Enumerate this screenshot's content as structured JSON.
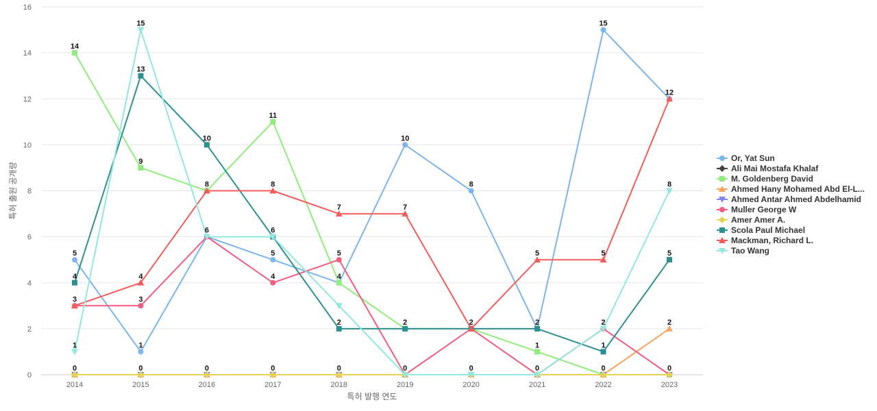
{
  "chart_data": {
    "type": "line",
    "title": "",
    "xlabel": "특허 발행 연도",
    "ylabel": "특허 출원 공개량",
    "x": [
      "2014",
      "2015",
      "2016",
      "2017",
      "2018",
      "2019",
      "2020",
      "2021",
      "2022",
      "2023"
    ],
    "ylim": [
      0,
      16
    ],
    "yticks": [
      0,
      2,
      4,
      6,
      8,
      10,
      12,
      14,
      16
    ],
    "grid": "horizontal",
    "legend_position": "right",
    "series": [
      {
        "name": "Or, Yat Sun",
        "color": "#7cb5ec",
        "marker": "circle",
        "values": [
          5,
          1,
          6,
          5,
          4,
          10,
          8,
          2,
          15,
          12
        ]
      },
      {
        "name": "Ali Mai Mostafa Khalaf",
        "color": "#434348",
        "marker": "diamond",
        "values": [
          0,
          0,
          0,
          0,
          0,
          0,
          0,
          0,
          0,
          0
        ]
      },
      {
        "name": "M. Goldenberg David",
        "color": "#90ed7d",
        "marker": "square",
        "values": [
          14,
          9,
          8,
          11,
          4,
          2,
          2,
          1,
          0,
          0
        ]
      },
      {
        "name": "Ahmed Hany Mohamed Abd El-L...",
        "color": "#f7a35c",
        "marker": "triangle",
        "values": [
          0,
          0,
          0,
          0,
          0,
          0,
          0,
          0,
          0,
          2
        ]
      },
      {
        "name": "Ahmed Antar Ahmed Abdelhamid",
        "color": "#8085e9",
        "marker": "triangle-down",
        "values": [
          0,
          0,
          0,
          0,
          0,
          0,
          0,
          0,
          0,
          0
        ]
      },
      {
        "name": "Muller George W",
        "color": "#f15c80",
        "marker": "circle",
        "values": [
          3,
          3,
          6,
          4,
          5,
          0,
          2,
          0,
          2,
          0
        ]
      },
      {
        "name": "Amer Amer A.",
        "color": "#e4d354",
        "marker": "diamond",
        "values": [
          0,
          0,
          0,
          0,
          0,
          0,
          0,
          0,
          0,
          0
        ]
      },
      {
        "name": "Scola Paul Michael",
        "color": "#2b908f",
        "marker": "square",
        "values": [
          4,
          13,
          10,
          6,
          2,
          2,
          2,
          2,
          1,
          5
        ]
      },
      {
        "name": "Mackman, Richard L.",
        "color": "#f45b5b",
        "marker": "triangle",
        "values": [
          3,
          4,
          8,
          8,
          7,
          7,
          2,
          5,
          5,
          12
        ]
      },
      {
        "name": "Tao Wang",
        "color": "#91e8e1",
        "marker": "triangle-down",
        "values": [
          1,
          15,
          6,
          6,
          3,
          0,
          0,
          0,
          2,
          8
        ]
      }
    ],
    "data_labels": [
      {
        "x": "2014",
        "y": 14,
        "text": "14"
      },
      {
        "x": "2014",
        "y": 5,
        "text": "5"
      },
      {
        "x": "2014",
        "y": 4,
        "text": "4"
      },
      {
        "x": "2014",
        "y": 3,
        "text": "3"
      },
      {
        "x": "2014",
        "y": 1,
        "text": "1"
      },
      {
        "x": "2014",
        "y": 0,
        "text": "0"
      },
      {
        "x": "2015",
        "y": 15,
        "text": "15"
      },
      {
        "x": "2015",
        "y": 13,
        "text": "13"
      },
      {
        "x": "2015",
        "y": 9,
        "text": "9"
      },
      {
        "x": "2015",
        "y": 4,
        "text": "4"
      },
      {
        "x": "2015",
        "y": 3,
        "text": "3"
      },
      {
        "x": "2015",
        "y": 1,
        "text": "1"
      },
      {
        "x": "2015",
        "y": 0,
        "text": "0"
      },
      {
        "x": "2016",
        "y": 10,
        "text": "10"
      },
      {
        "x": "2016",
        "y": 8,
        "text": "8"
      },
      {
        "x": "2016",
        "y": 6,
        "text": "6"
      },
      {
        "x": "2016",
        "y": 0,
        "text": "0"
      },
      {
        "x": "2017",
        "y": 11,
        "text": "11"
      },
      {
        "x": "2017",
        "y": 8,
        "text": "8"
      },
      {
        "x": "2017",
        "y": 6,
        "text": "6"
      },
      {
        "x": "2017",
        "y": 5,
        "text": "5"
      },
      {
        "x": "2017",
        "y": 4,
        "text": "4"
      },
      {
        "x": "2017",
        "y": 0,
        "text": "0"
      },
      {
        "x": "2018",
        "y": 7,
        "text": "7"
      },
      {
        "x": "2018",
        "y": 5,
        "text": "5"
      },
      {
        "x": "2018",
        "y": 4,
        "text": "4"
      },
      {
        "x": "2018",
        "y": 2,
        "text": "2"
      },
      {
        "x": "2018",
        "y": 0,
        "text": "0"
      },
      {
        "x": "2019",
        "y": 10,
        "text": "10"
      },
      {
        "x": "2019",
        "y": 7,
        "text": "7"
      },
      {
        "x": "2019",
        "y": 2,
        "text": "2"
      },
      {
        "x": "2019",
        "y": 0,
        "text": "0"
      },
      {
        "x": "2020",
        "y": 8,
        "text": "8"
      },
      {
        "x": "2020",
        "y": 2,
        "text": "2"
      },
      {
        "x": "2020",
        "y": 0,
        "text": "0"
      },
      {
        "x": "2021",
        "y": 5,
        "text": "5"
      },
      {
        "x": "2021",
        "y": 2,
        "text": "2"
      },
      {
        "x": "2021",
        "y": 1,
        "text": "1"
      },
      {
        "x": "2021",
        "y": 0,
        "text": "0"
      },
      {
        "x": "2022",
        "y": 15,
        "text": "15"
      },
      {
        "x": "2022",
        "y": 5,
        "text": "5"
      },
      {
        "x": "2022",
        "y": 2,
        "text": "2"
      },
      {
        "x": "2022",
        "y": 1,
        "text": "1"
      },
      {
        "x": "2022",
        "y": 0,
        "text": "0"
      },
      {
        "x": "2023",
        "y": 12,
        "text": "12"
      },
      {
        "x": "2023",
        "y": 8,
        "text": "8"
      },
      {
        "x": "2023",
        "y": 5,
        "text": "5"
      },
      {
        "x": "2023",
        "y": 2,
        "text": "2"
      },
      {
        "x": "2023",
        "y": 0,
        "text": "0"
      }
    ]
  }
}
